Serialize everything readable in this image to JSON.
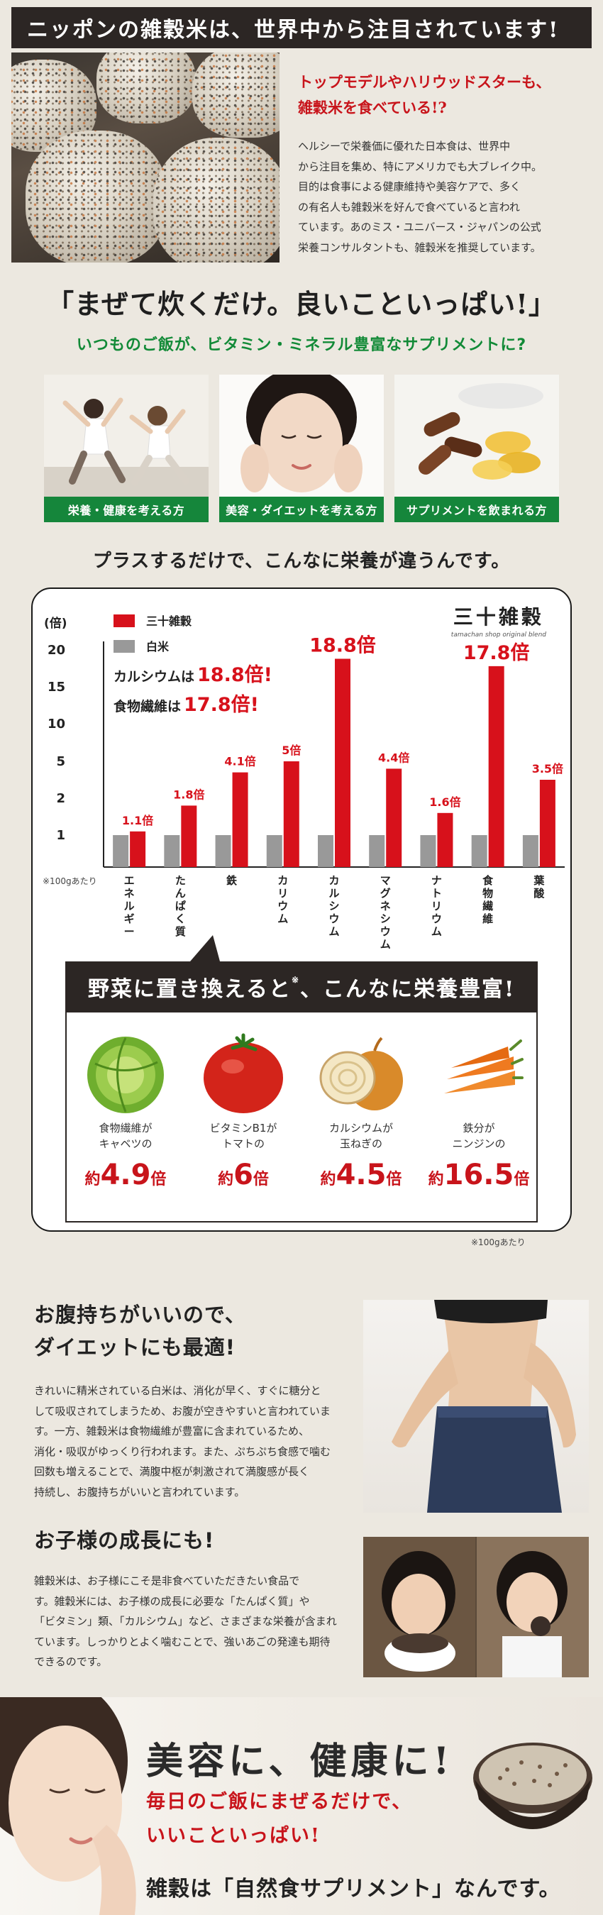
{
  "header": {
    "banner": "ニッポンの雑穀米は、世界中から注目されています!",
    "intro_heading_1": "トップモデルやハリウッドスターも、",
    "intro_heading_2": "雑穀米を食べている!?",
    "intro_body": [
      "ヘルシーで栄養価に優れた日本食は、世界中",
      "から注目を集め、特にアメリカでも大ブレイク中。",
      "目的は食事による健康維持や美容ケアで、多く",
      "の有名人も雑穀米を好んで食べていると言われ",
      "ています。あのミス・ユニバース・ジャパンの公式",
      "栄養コンサルタントも、雑穀米を推奨しています。"
    ]
  },
  "mix": {
    "quote": "「まぜて炊くだけ。良いこといっぱい!」",
    "subtitle": "いつものご飯が、ビタミン・ミネラル豊富なサプリメントに?",
    "cards": [
      {
        "caption": "栄養・健康を考える方"
      },
      {
        "caption": "美容・ダイエットを考える方"
      },
      {
        "caption": "サプリメントを飲まれる方"
      }
    ],
    "lead": "プラスするだけで、こんなに栄養が違うんです。"
  },
  "brand": {
    "name": "三十雑穀",
    "tagline": "tamachan shop original blend"
  },
  "chart_data": {
    "type": "bar",
    "ylabel": "(倍)",
    "y_ticks": [
      "1",
      "2",
      "5",
      "10",
      "15",
      "20"
    ],
    "categories": [
      "エネルギー",
      "たんぱく質",
      "鉄",
      "カリウム",
      "カルシウム",
      "マグネシウム",
      "ナトリウム",
      "食物繊維",
      "葉酸"
    ],
    "series": [
      {
        "name": "三十雑穀",
        "color": "#d7111b",
        "values": [
          1.1,
          1.8,
          4.1,
          5,
          18.8,
          4.4,
          1.6,
          17.8,
          3.5
        ]
      },
      {
        "name": "白米",
        "color": "#999999",
        "values": [
          1,
          1,
          1,
          1,
          1,
          1,
          1,
          1,
          1
        ]
      }
    ],
    "data_labels": [
      "1.1倍",
      "1.8倍",
      "4.1倍",
      "5倍",
      "18.8倍",
      "4.4倍",
      "1.6倍",
      "17.8倍",
      "3.5倍"
    ],
    "legend_position": "top-left",
    "annotations": [
      {
        "prefix": "カルシウムは",
        "value": "18.8倍!"
      },
      {
        "prefix": "食物繊維は",
        "value": "17.8倍!"
      }
    ],
    "footnote": "※100gあたり"
  },
  "vegetables": {
    "title": "野菜に置き換えると",
    "title_mark": "※",
    "title_tail": "、こんなに栄養豊富!",
    "items": [
      {
        "line1": "食物繊維が",
        "line2": "キャベツの",
        "pre": "約",
        "num": "4.9",
        "suf": "倍",
        "icon": "cabbage-icon"
      },
      {
        "line1": "ビタミンB1が",
        "line2": "トマトの",
        "pre": "約",
        "num": "6",
        "suf": "倍",
        "icon": "tomato-icon"
      },
      {
        "line1": "カルシウムが",
        "line2": "玉ねぎの",
        "pre": "約",
        "num": "4.5",
        "suf": "倍",
        "icon": "onion-icon"
      },
      {
        "line1": "鉄分が",
        "line2": "ニンジンの",
        "pre": "約",
        "num": "16.5",
        "suf": "倍",
        "icon": "carrot-icon"
      }
    ],
    "footnote": "※100gあたり"
  },
  "diet": {
    "title_1": "お腹持ちがいいので、",
    "title_2": "ダイエットにも最適!",
    "body": [
      "きれいに精米されている白米は、消化が早く、すぐに糖分と",
      "して吸収されてしまうため、お腹が空きやすいと言われていま",
      "す。一方、雑穀米は食物繊維が豊富に含まれているため、",
      "消化・吸収がゆっくり行われます。また、ぷちぷち食感で噛む",
      "回数も増えることで、満腹中枢が刺激されて満腹感が長く",
      "持続し、お腹持ちがいいと言われています。"
    ]
  },
  "kids": {
    "title": "お子様の成長にも!",
    "body": [
      "雑穀米は、お子様にこそ是非食べていただきたい食品で",
      "す。雑穀米には、お子様の成長に必要な「たんぱく質」や",
      "「ビタミン」類、「カルシウム」など、さまざまな栄養が含まれ",
      "ています。しっかりとよく噛むことで、強いあごの発達も期待",
      "できるのです。"
    ]
  },
  "footer": {
    "headline": "美容に、健康に!",
    "sub_1": "毎日のご飯にまぜるだけで、",
    "sub_2": "いいこといっぱい!",
    "tagline": "雑穀は「自然食サプリメント」なんです。"
  }
}
